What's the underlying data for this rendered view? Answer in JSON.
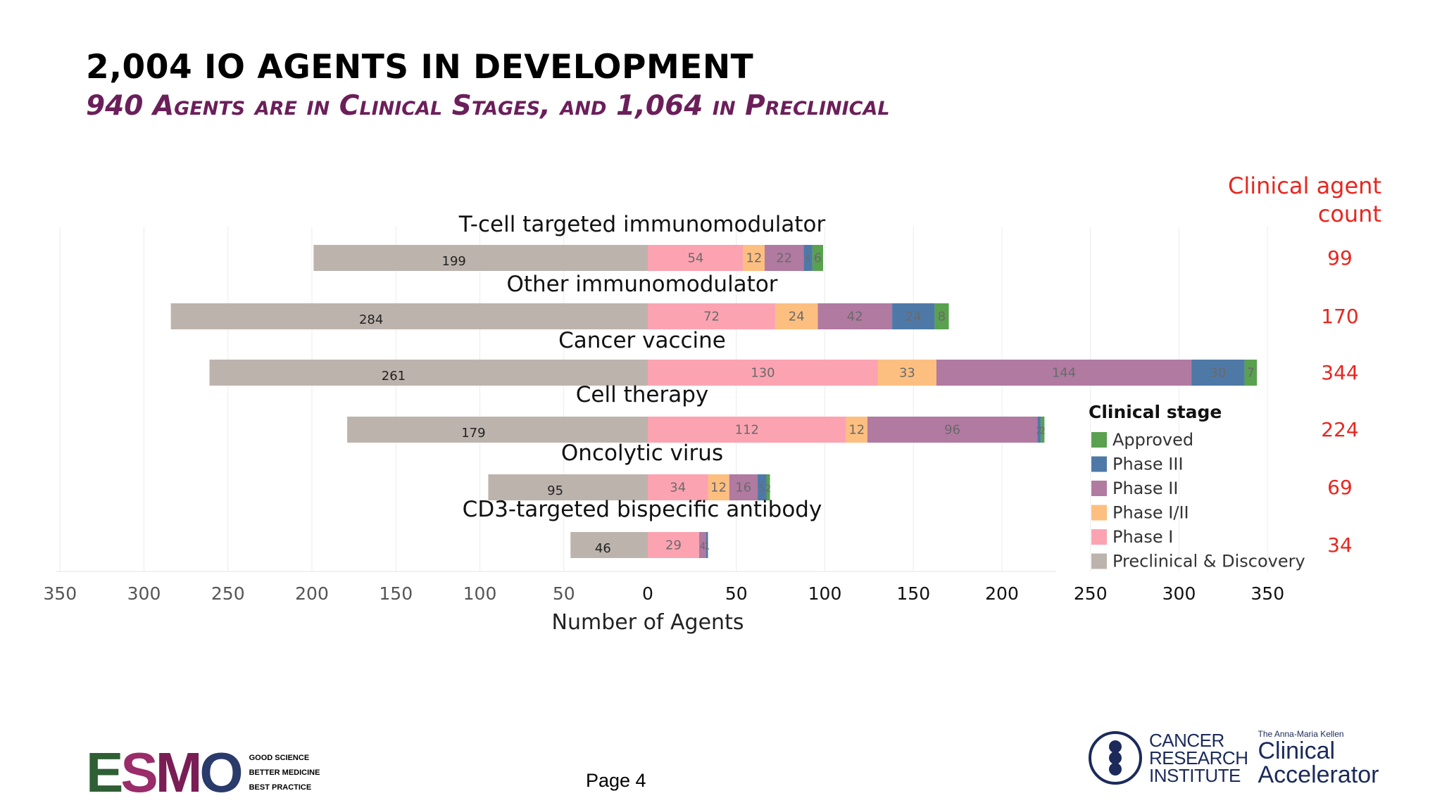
{
  "title": "2,004 IO AGENTS IN DEVELOPMENT",
  "subtitle": "940 Agents are in Clinical Stages, and 1,064 in Preclinical",
  "clinical_count_header": "Clinical agent count",
  "page_label": "Page 4",
  "esmo_logo": {
    "letters": [
      "E",
      "S",
      "M",
      "O"
    ],
    "letter_colors": [
      "#2f5f34",
      "#9a2c6a",
      "#7a1d55",
      "#2a3a6a"
    ],
    "tagline": [
      "GOOD SCIENCE",
      "BETTER MEDICINE",
      "BEST PRACTICE"
    ]
  },
  "cri_logo": {
    "lines": [
      "CANCER",
      "RESEARCH",
      "INSTITUTE"
    ],
    "accelerator_small": "The Anna-Maria Kellen",
    "accelerator_big": [
      "Clinical",
      "Accelerator"
    ]
  },
  "colors": {
    "preclinical": "#bdb3ad",
    "phase_i": "#fca3b2",
    "phase_i_ii": "#fdbf80",
    "phase_ii": "#b07aa1",
    "phase_iii": "#4e79a7",
    "approved": "#59a14f",
    "count_red": "#e8261f"
  },
  "chart_data": {
    "type": "bar",
    "orientation": "horizontal-diverging",
    "xlabel": "Number of Agents",
    "x_ticks_left": [
      "350",
      "300",
      "250",
      "200",
      "150",
      "100",
      "50"
    ],
    "x_ticks_right": [
      "0",
      "50",
      "100",
      "150",
      "200",
      "250",
      "300",
      "350"
    ],
    "xlim_left": [
      0,
      350
    ],
    "xlim_right": [
      0,
      350
    ],
    "legend": {
      "title": "Clinical stage",
      "placement": "right",
      "entries": [
        "Approved",
        "Phase III",
        "Phase II",
        "Phase I/II",
        "Phase I",
        "Preclinical & Discovery"
      ]
    },
    "categories": [
      "T-cell targeted immunomodulator",
      "Other immunomodulator",
      "Cancer vaccine",
      "Cell therapy",
      "Oncolytic virus",
      "CD3-targeted bispecific antibody"
    ],
    "clinical_counts": [
      "99",
      "170",
      "344",
      "224",
      "69",
      "34"
    ],
    "series": [
      {
        "name": "Preclinical & Discovery",
        "side": "left",
        "values": [
          199,
          284,
          261,
          179,
          95,
          46
        ]
      },
      {
        "name": "Phase I",
        "values": [
          54,
          72,
          130,
          112,
          34,
          29
        ]
      },
      {
        "name": "Phase I/II",
        "values": [
          12,
          24,
          33,
          12,
          12,
          0
        ]
      },
      {
        "name": "Phase II",
        "values": [
          22,
          42,
          144,
          96,
          16,
          4
        ]
      },
      {
        "name": "Phase III",
        "values": [
          5,
          24,
          30,
          2,
          5,
          1
        ]
      },
      {
        "name": "Approved",
        "values": [
          6,
          8,
          7,
          2,
          2,
          0
        ]
      }
    ]
  }
}
